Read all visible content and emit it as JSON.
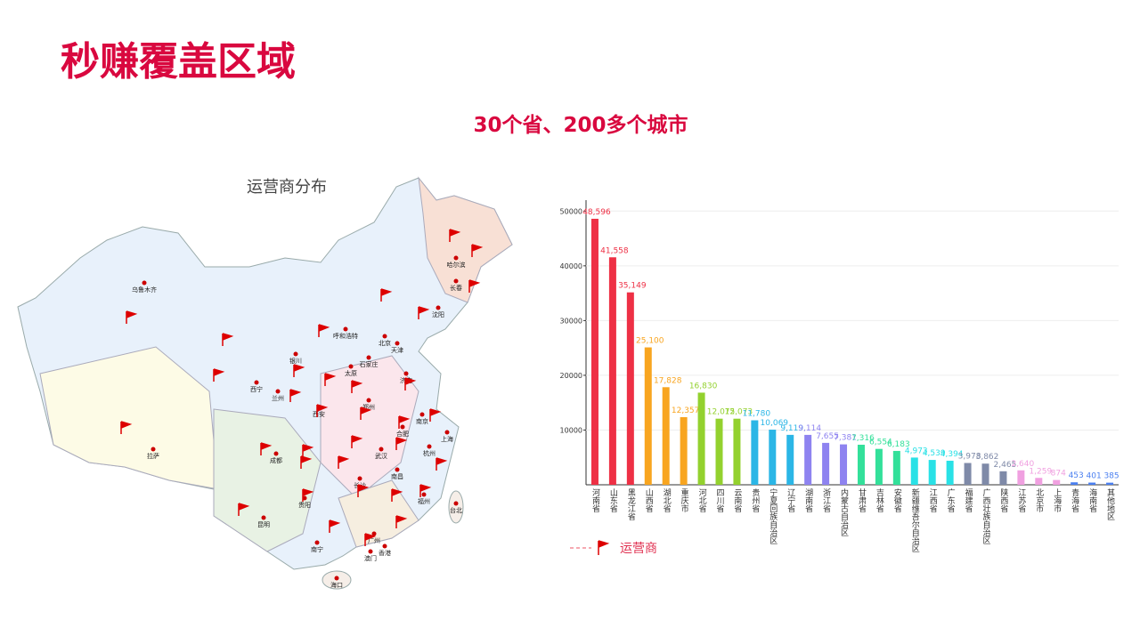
{
  "slide": {
    "title": "秒赚覆盖区域",
    "subtitle": "30个省、200多个城市"
  },
  "map": {
    "title": "运营商分布",
    "legend": "运营商",
    "cities": [
      "乌鲁木齐",
      "拉萨",
      "西宁",
      "兰州",
      "银川",
      "呼和浩特",
      "北京",
      "天津",
      "石家庄",
      "太原",
      "济南",
      "郑州",
      "西安",
      "合肥",
      "南京",
      "上海",
      "杭州",
      "武汉",
      "成都",
      "长沙",
      "南昌",
      "福州",
      "贵阳",
      "昆明",
      "南宁",
      "广州",
      "香港",
      "澳门",
      "海口",
      "台北",
      "哈尔滨",
      "长春",
      "沈阳"
    ]
  },
  "chart_data": {
    "type": "bar",
    "categories": [
      "河南省",
      "山东省",
      "黑龙江省",
      "山西省",
      "湖北省",
      "重庆市",
      "河北省",
      "四川省",
      "云南省",
      "贵州省",
      "宁夏回族自治区",
      "辽宁省",
      "湖南省",
      "浙江省",
      "内蒙古自治区",
      "甘肃省",
      "吉林省",
      "安徽省",
      "新疆维吾尔自治区",
      "江西省",
      "广东省",
      "福建省",
      "广西壮族自治区",
      "陕西省",
      "江苏省",
      "北京市",
      "上海市",
      "青海省",
      "海南省",
      "其他地区"
    ],
    "values": [
      48596,
      41558,
      35149,
      25100,
      17828,
      12357,
      16830,
      12075,
      12073,
      11780,
      10069,
      9119,
      9114,
      7655,
      7381,
      7316,
      6554,
      6183,
      4973,
      4539,
      4394,
      3978,
      3862,
      2465,
      2640,
      1259,
      874,
      453,
      401,
      385
    ],
    "value_labels": [
      "48,596",
      "41,558",
      "35,149",
      "25,100",
      "17,828",
      "12,357",
      "16,830",
      "12,075",
      "12,073",
      "11,780",
      "10,069",
      "9,119",
      "9,114",
      "7,655",
      "7,381",
      "7,316",
      "6,554",
      "6,183",
      "4,973",
      "4,539",
      "4,394",
      "3,978",
      "3,862",
      "2,465",
      "2,640",
      "1,259",
      "874",
      "453",
      "401",
      "385"
    ],
    "colors": [
      "#ee3045",
      "#ee3045",
      "#ee3045",
      "#f8a520",
      "#f8a520",
      "#f8a520",
      "#93d12e",
      "#93d12e",
      "#93d12e",
      "#2bb6e6",
      "#2bb6e6",
      "#2bb6e6",
      "#8e83f0",
      "#8e83f0",
      "#8e83f0",
      "#33e09a",
      "#33e09a",
      "#33e09a",
      "#29e1e6",
      "#29e1e6",
      "#29e1e6",
      "#7f8aa8",
      "#7f8aa8",
      "#7f8aa8",
      "#f0a0e0",
      "#f0a0e0",
      "#f0a0e0",
      "#4a7ff0",
      "#4a7ff0",
      "#4a7ff0"
    ],
    "ylim": [
      0,
      52000
    ],
    "yticks": [
      10000,
      20000,
      30000,
      40000,
      50000
    ],
    "grid": true
  }
}
